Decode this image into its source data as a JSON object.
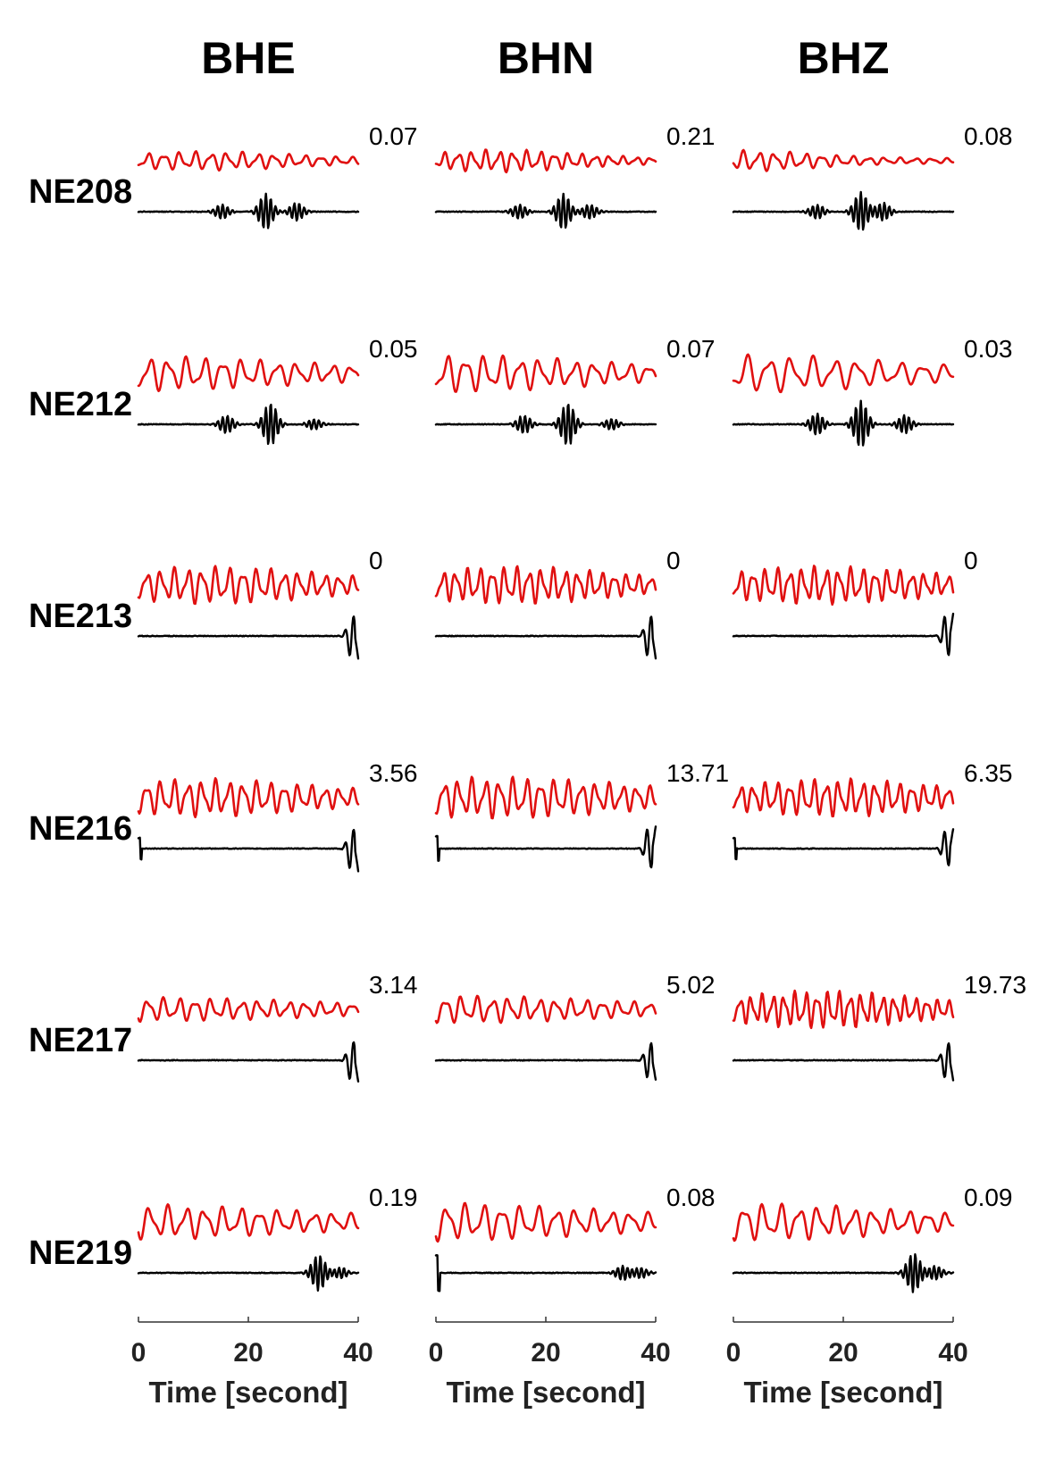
{
  "chart_data": {
    "type": "line",
    "components": [
      "BHE",
      "BHN",
      "BHZ"
    ],
    "stations": [
      "NE208",
      "NE212",
      "NE213",
      "NE216",
      "NE217",
      "NE219"
    ],
    "values": [
      [
        "0.07",
        "0.21",
        "0.08"
      ],
      [
        "0.05",
        "0.07",
        "0.03"
      ],
      [
        "0",
        "0",
        "0"
      ],
      [
        "3.56",
        "13.71",
        "6.35"
      ],
      [
        "3.14",
        "5.02",
        "19.73"
      ],
      [
        "0.19",
        "0.08",
        "0.09"
      ]
    ],
    "xlabel": "Time [second]",
    "xlim": [
      0,
      40
    ],
    "xticks": [
      "0",
      "20",
      "40"
    ],
    "series_colors": {
      "upper": "#e01010",
      "lower": "#000000"
    }
  }
}
